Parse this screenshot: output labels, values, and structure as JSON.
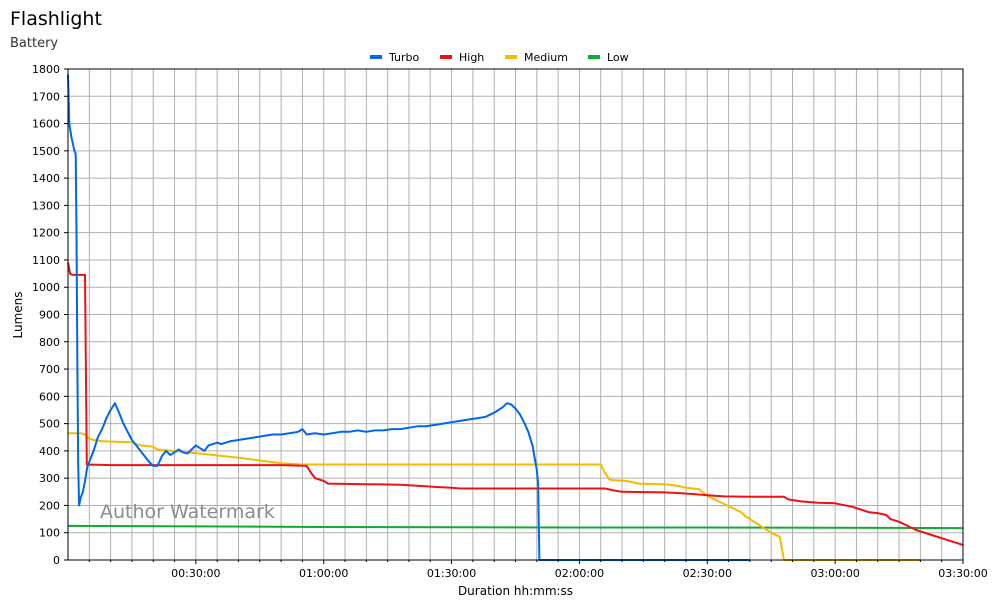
{
  "chart_data": {
    "type": "line",
    "title": "Flashlight",
    "subtitle": "Battery",
    "xlabel": "Duration hh:mm:ss",
    "ylabel": "Lumens",
    "xlim": [
      "00:00:00",
      "03:30:00"
    ],
    "ylim": [
      0,
      1800
    ],
    "grid": true,
    "legend_position": "top-center",
    "watermark": "Author Watermark",
    "x_tick_labels": [
      "00:30:00",
      "01:00:00",
      "01:30:00",
      "02:00:00",
      "02:30:00",
      "03:00:00",
      "03:30:00"
    ],
    "y_tick_labels": [
      "0",
      "100",
      "200",
      "300",
      "400",
      "500",
      "600",
      "700",
      "800",
      "900",
      "1000",
      "1100",
      "1200",
      "1300",
      "1400",
      "1500",
      "1600",
      "1700",
      "1800"
    ],
    "x_unit": "minutes",
    "series": [
      {
        "name": "Turbo",
        "color": "#0066ee",
        "points": [
          [
            0,
            1780
          ],
          [
            0.3,
            1600
          ],
          [
            0.8,
            1550
          ],
          [
            1.5,
            1500
          ],
          [
            1.8,
            1490
          ],
          [
            2,
            1200
          ],
          [
            2.2,
            700
          ],
          [
            2.4,
            350
          ],
          [
            2.6,
            200
          ],
          [
            3,
            230
          ],
          [
            3.5,
            250
          ],
          [
            4,
            290
          ],
          [
            4.5,
            340
          ],
          [
            5,
            360
          ],
          [
            6,
            400
          ],
          [
            7,
            450
          ],
          [
            8,
            480
          ],
          [
            9,
            520
          ],
          [
            10,
            550
          ],
          [
            11,
            575
          ],
          [
            12,
            540
          ],
          [
            13,
            500
          ],
          [
            14,
            470
          ],
          [
            15,
            440
          ],
          [
            16,
            420
          ],
          [
            17,
            400
          ],
          [
            18,
            380
          ],
          [
            19,
            360
          ],
          [
            20,
            345
          ],
          [
            21,
            345
          ],
          [
            22,
            380
          ],
          [
            23,
            400
          ],
          [
            24,
            385
          ],
          [
            25,
            395
          ],
          [
            26,
            405
          ],
          [
            27,
            395
          ],
          [
            28,
            390
          ],
          [
            29,
            405
          ],
          [
            30,
            420
          ],
          [
            31,
            410
          ],
          [
            32,
            400
          ],
          [
            33,
            420
          ],
          [
            34,
            425
          ],
          [
            35,
            430
          ],
          [
            36,
            425
          ],
          [
            37,
            430
          ],
          [
            38,
            435
          ],
          [
            40,
            440
          ],
          [
            42,
            445
          ],
          [
            44,
            450
          ],
          [
            46,
            455
          ],
          [
            48,
            460
          ],
          [
            50,
            460
          ],
          [
            52,
            465
          ],
          [
            54,
            470
          ],
          [
            55,
            480
          ],
          [
            56,
            460
          ],
          [
            58,
            465
          ],
          [
            60,
            460
          ],
          [
            62,
            465
          ],
          [
            64,
            470
          ],
          [
            66,
            470
          ],
          [
            68,
            475
          ],
          [
            70,
            470
          ],
          [
            72,
            475
          ],
          [
            74,
            475
          ],
          [
            76,
            480
          ],
          [
            78,
            480
          ],
          [
            80,
            485
          ],
          [
            82,
            490
          ],
          [
            84,
            490
          ],
          [
            86,
            495
          ],
          [
            88,
            500
          ],
          [
            90,
            505
          ],
          [
            92,
            510
          ],
          [
            94,
            515
          ],
          [
            96,
            520
          ],
          [
            98,
            525
          ],
          [
            100,
            540
          ],
          [
            101,
            550
          ],
          [
            102,
            560
          ],
          [
            103,
            575
          ],
          [
            104,
            570
          ],
          [
            105,
            555
          ],
          [
            106,
            535
          ],
          [
            107,
            505
          ],
          [
            108,
            470
          ],
          [
            109,
            420
          ],
          [
            110,
            330
          ],
          [
            110.3,
            280
          ],
          [
            110.6,
            0
          ],
          [
            120,
            0
          ],
          [
            150,
            0
          ],
          [
            160,
            0
          ]
        ]
      },
      {
        "name": "High",
        "color": "#ee1111",
        "points": [
          [
            0,
            1090
          ],
          [
            0.5,
            1050
          ],
          [
            1,
            1045
          ],
          [
            4,
            1045
          ],
          [
            4.2,
            700
          ],
          [
            4.4,
            350
          ],
          [
            10,
            348
          ],
          [
            30,
            348
          ],
          [
            40,
            348
          ],
          [
            50,
            348
          ],
          [
            56,
            345
          ],
          [
            57,
            320
          ],
          [
            58,
            300
          ],
          [
            60,
            290
          ],
          [
            61,
            280
          ],
          [
            70,
            278
          ],
          [
            78,
            276
          ],
          [
            82,
            272
          ],
          [
            86,
            268
          ],
          [
            90,
            265
          ],
          [
            92,
            262
          ],
          [
            100,
            262
          ],
          [
            110,
            262
          ],
          [
            120,
            262
          ],
          [
            126,
            262
          ],
          [
            128,
            255
          ],
          [
            130,
            250
          ],
          [
            140,
            248
          ],
          [
            144,
            245
          ],
          [
            148,
            240
          ],
          [
            152,
            235
          ],
          [
            154,
            233
          ],
          [
            160,
            232
          ],
          [
            168,
            232
          ],
          [
            169,
            222
          ],
          [
            172,
            215
          ],
          [
            176,
            210
          ],
          [
            180,
            208
          ],
          [
            184,
            195
          ],
          [
            186,
            185
          ],
          [
            188,
            175
          ],
          [
            190,
            172
          ],
          [
            192,
            165
          ],
          [
            193,
            150
          ],
          [
            195,
            140
          ],
          [
            197,
            125
          ],
          [
            199,
            110
          ],
          [
            201,
            100
          ],
          [
            203,
            90
          ],
          [
            205,
            80
          ],
          [
            207,
            70
          ],
          [
            209,
            60
          ],
          [
            210,
            55
          ],
          [
            210.5,
            0
          ],
          [
            240,
            0
          ]
        ]
      },
      {
        "name": "Medium",
        "color": "#f5bb00",
        "points": [
          [
            0,
            465
          ],
          [
            3,
            465
          ],
          [
            4,
            460
          ],
          [
            5,
            445
          ],
          [
            6,
            440
          ],
          [
            7,
            438
          ],
          [
            8,
            435
          ],
          [
            15,
            432
          ],
          [
            16,
            425
          ],
          [
            17,
            420
          ],
          [
            20,
            415
          ],
          [
            21,
            405
          ],
          [
            30,
            392
          ],
          [
            40,
            375
          ],
          [
            50,
            355
          ],
          [
            55,
            350
          ],
          [
            80,
            350
          ],
          [
            100,
            350
          ],
          [
            120,
            350
          ],
          [
            125,
            350
          ],
          [
            126,
            320
          ],
          [
            127,
            295
          ],
          [
            128,
            292
          ],
          [
            131,
            290
          ],
          [
            134,
            280
          ],
          [
            140,
            278
          ],
          [
            143,
            272
          ],
          [
            145,
            265
          ],
          [
            148,
            260
          ],
          [
            149,
            248
          ],
          [
            150,
            235
          ],
          [
            152,
            220
          ],
          [
            154,
            205
          ],
          [
            156,
            190
          ],
          [
            158,
            175
          ],
          [
            159,
            160
          ],
          [
            161,
            140
          ],
          [
            163,
            120
          ],
          [
            165,
            100
          ],
          [
            167,
            85
          ],
          [
            168,
            0
          ],
          [
            190,
            0
          ],
          [
            200,
            0
          ]
        ]
      },
      {
        "name": "Low",
        "color": "#11aa33",
        "points": [
          [
            0,
            125
          ],
          [
            30,
            123
          ],
          [
            60,
            121
          ],
          [
            90,
            120
          ],
          [
            120,
            119
          ],
          [
            150,
            119
          ],
          [
            180,
            118
          ],
          [
            210,
            117
          ]
        ]
      }
    ]
  }
}
